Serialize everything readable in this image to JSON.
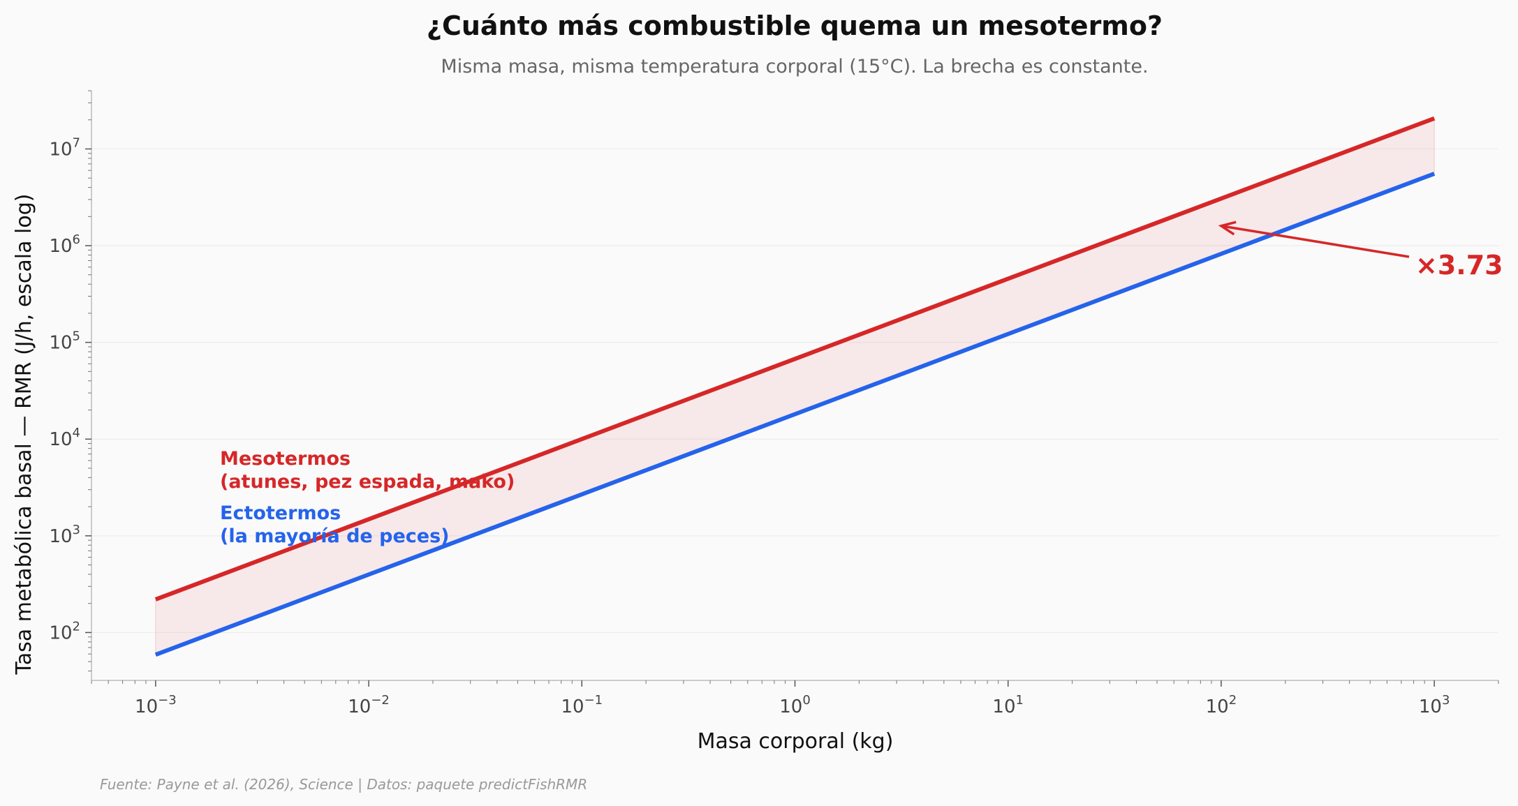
{
  "chart_data": {
    "type": "line",
    "title": "¿Cuánto más combustible quema un mesotermo?",
    "subtitle": "Misma masa, misma temperatura corporal (15°C). La brecha es constante.",
    "xlabel": "Masa corporal (kg)",
    "ylabel": "Tasa metabólica basal — RMR (J/h, escala log)",
    "x_scale": "log",
    "y_scale": "log",
    "xlim": [
      0.0005,
      2000
    ],
    "ylim": [
      32,
      40000000
    ],
    "x_ticks": [
      0.001,
      0.01,
      0.1,
      1,
      10,
      100,
      1000
    ],
    "x_tick_labels": [
      {
        "base": "10",
        "exp": "−3"
      },
      {
        "base": "10",
        "exp": "−2"
      },
      {
        "base": "10",
        "exp": "−1"
      },
      {
        "base": "10",
        "exp": "0"
      },
      {
        "base": "10",
        "exp": "1"
      },
      {
        "base": "10",
        "exp": "2"
      },
      {
        "base": "10",
        "exp": "3"
      }
    ],
    "y_ticks": [
      100,
      1000,
      10000,
      100000,
      1000000,
      10000000
    ],
    "y_tick_labels": [
      {
        "base": "10",
        "exp": "2"
      },
      {
        "base": "10",
        "exp": "3"
      },
      {
        "base": "10",
        "exp": "4"
      },
      {
        "base": "10",
        "exp": "5"
      },
      {
        "base": "10",
        "exp": "6"
      },
      {
        "base": "10",
        "exp": "7"
      }
    ],
    "grid": "horizontal",
    "series": [
      {
        "name": "Mesotermos\n(atunes, pez espada, mako)",
        "name_lines": [
          "Mesotermos",
          "(atunes, pez espada, mako)"
        ],
        "color": "#d62728",
        "x": [
          0.001,
          1000
        ],
        "y": [
          220,
          20700000
        ]
      },
      {
        "name": "Ectotermos\n(la mayoría de peces)",
        "name_lines": [
          "Ectotermos",
          "(la mayoría de peces)"
        ],
        "color": "#2563eb",
        "x": [
          0.001,
          1000
        ],
        "y": [
          59,
          5550000
        ]
      }
    ],
    "fill_between": {
      "color": "#d62728",
      "opacity": 0.08
    },
    "annotation": {
      "text": "×3.73",
      "color": "#d62728",
      "points_to": {
        "x": 100,
        "y": 1600000
      }
    },
    "source": "Fuente: Payne et al. (2026), Science | Datos: paquete predictFishRMR"
  }
}
